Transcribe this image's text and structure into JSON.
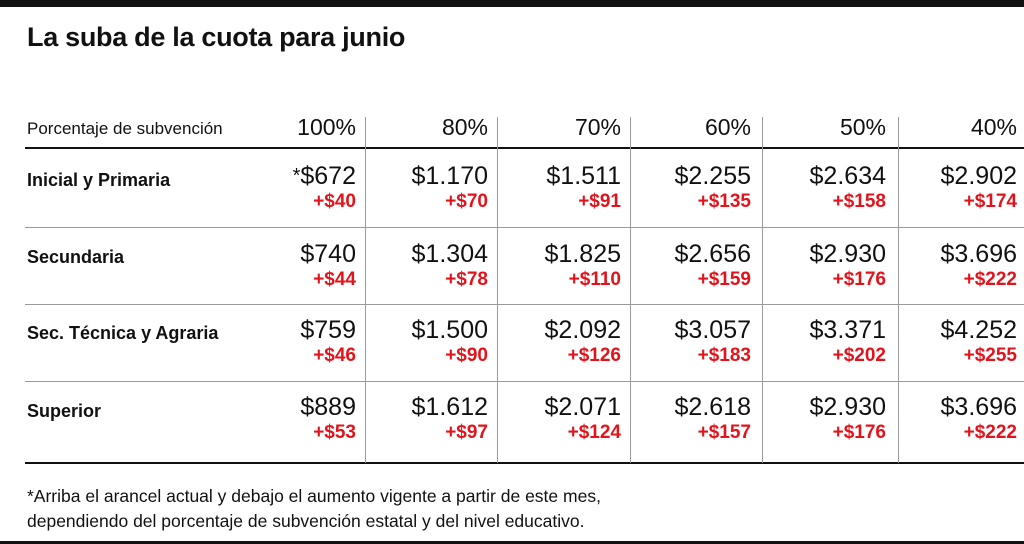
{
  "title": "La suba de la cuota para junio",
  "header": {
    "label": "Porcentaje de subvención",
    "columns": [
      "100%",
      "80%",
      "70%",
      "60%",
      "50%",
      "40%"
    ]
  },
  "rows": [
    {
      "label": "Inicial y Primaria",
      "marker": "*",
      "values": [
        "$672",
        "$1.170",
        "$1.511",
        "$2.255",
        "$2.634",
        "$2.902"
      ],
      "increases": [
        "+$40",
        "+$70",
        "+$91",
        "+$135",
        "+$158",
        "+$174"
      ]
    },
    {
      "label": "Secundaria",
      "values": [
        "$740",
        "$1.304",
        "$1.825",
        "$2.656",
        "$2.930",
        "$3.696"
      ],
      "increases": [
        "+$44",
        "+$78",
        "+$110",
        "+$159",
        "+$176",
        "+$222"
      ]
    },
    {
      "label": "Sec. Técnica y Agraria",
      "values": [
        "$759",
        "$1.500",
        "$2.092",
        "$3.057",
        "$3.371",
        "$4.252"
      ],
      "increases": [
        "+$46",
        "+$90",
        "+$126",
        "+$183",
        "+$202",
        "+$255"
      ]
    },
    {
      "label": "Superior",
      "values": [
        "$889",
        "$1.612",
        "$2.071",
        "$2.618",
        "$2.930",
        "$3.696"
      ],
      "increases": [
        "+$53",
        "+$97",
        "+$124",
        "+$157",
        "+$176",
        "+$222"
      ]
    }
  ],
  "note": {
    "line1": "*Arriba el arancel actual y debajo el aumento vigente a partir de este mes,",
    "line2": "dependiendo del porcentaje de subvención estatal y del nivel educativo."
  },
  "colors": {
    "increase": "#e3131b",
    "text": "#111111",
    "grid": "#9a9a9a"
  }
}
